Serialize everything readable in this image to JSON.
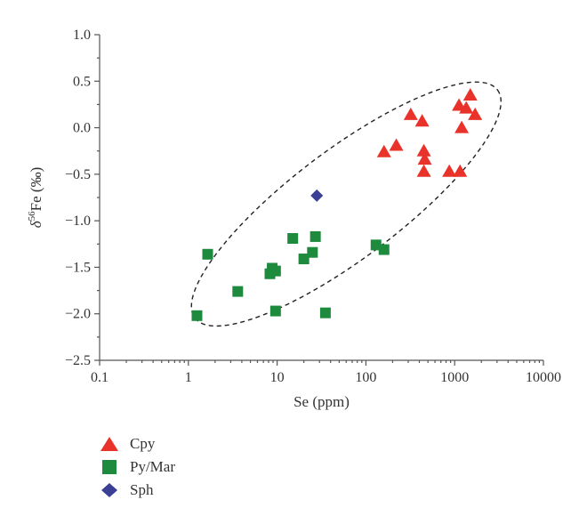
{
  "chart_data": {
    "type": "scatter",
    "xlabel": "Se (ppm)",
    "ylabel_prefix": "δ",
    "ylabel_sup": "56",
    "ylabel_suffix": "Fe (‰)",
    "x_scale": "log",
    "xlim": [
      0.1,
      10000
    ],
    "ylim": [
      -2.5,
      1.0
    ],
    "x_ticks": [
      {
        "v": 0.1,
        "label": "0.1"
      },
      {
        "v": 1,
        "label": "1"
      },
      {
        "v": 10,
        "label": "10"
      },
      {
        "v": 100,
        "label": "100"
      },
      {
        "v": 1000,
        "label": "1000"
      },
      {
        "v": 10000,
        "label": "10000"
      }
    ],
    "y_ticks": [
      {
        "v": 1.0,
        "label": "1.0"
      },
      {
        "v": 0.5,
        "label": "0.5"
      },
      {
        "v": 0.0,
        "label": "0.0"
      },
      {
        "v": -0.5,
        "label": "−0.5"
      },
      {
        "v": -1.0,
        "label": "−1.0"
      },
      {
        "v": -1.5,
        "label": "−1.5"
      },
      {
        "v": -2.0,
        "label": "−2.0"
      },
      {
        "v": -2.5,
        "label": "−2.5"
      }
    ],
    "grid": false,
    "legend_position": "bottom-left",
    "series": [
      {
        "name": "Cpy",
        "marker": "triangle",
        "color": "#e8322a",
        "points": [
          [
            160,
            -0.26
          ],
          [
            220,
            -0.19
          ],
          [
            320,
            0.14
          ],
          [
            430,
            0.07
          ],
          [
            450,
            -0.25
          ],
          [
            460,
            -0.34
          ],
          [
            450,
            -0.47
          ],
          [
            870,
            -0.47
          ],
          [
            1150,
            -0.47
          ],
          [
            1120,
            0.24
          ],
          [
            1350,
            0.21
          ],
          [
            1500,
            0.35
          ],
          [
            1700,
            0.14
          ],
          [
            1200,
            0.0
          ]
        ]
      },
      {
        "name": "Py/Mar",
        "marker": "square",
        "color": "#1e8a3e",
        "points": [
          [
            1.25,
            -2.02
          ],
          [
            1.65,
            -1.36
          ],
          [
            3.6,
            -1.76
          ],
          [
            8.3,
            -1.57
          ],
          [
            8.8,
            -1.51
          ],
          [
            9.6,
            -1.54
          ],
          [
            9.6,
            -1.97
          ],
          [
            15,
            -1.19
          ],
          [
            20,
            -1.41
          ],
          [
            25,
            -1.34
          ],
          [
            27,
            -1.17
          ],
          [
            35,
            -1.99
          ],
          [
            130,
            -1.26
          ],
          [
            160,
            -1.31
          ]
        ]
      },
      {
        "name": "Sph",
        "marker": "diamond",
        "color": "#3b3f96",
        "points": [
          [
            28,
            -0.73
          ]
        ]
      }
    ],
    "annotations": [
      {
        "type": "dashed-ellipse",
        "center": [
          60,
          -0.82
        ],
        "note": "encloses data trend"
      }
    ]
  }
}
